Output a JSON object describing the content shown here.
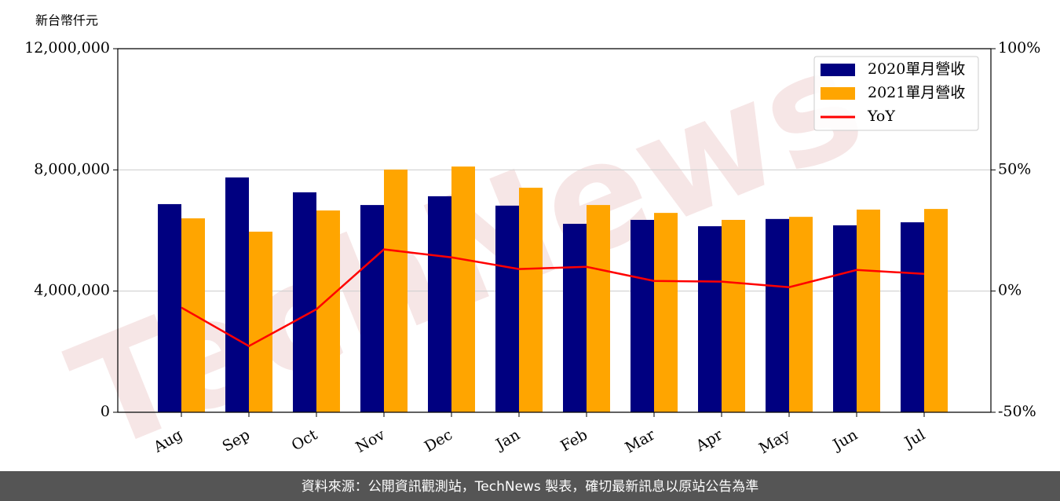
{
  "chart_data": {
    "type": "bar",
    "y_label": "新台幣仟元",
    "watermark": "TechNews",
    "footer": "資料來源：公開資訊觀測站，TechNews 製表，確切最新訊息以原站公告為準",
    "categories": [
      "Aug",
      "Sep",
      "Oct",
      "Nov",
      "Dec",
      "Jan",
      "Feb",
      "Mar",
      "Apr",
      "May",
      "Jun",
      "Jul"
    ],
    "series": [
      {
        "name": "2020單月營收",
        "color": "#000080",
        "values": [
          6870000,
          7750000,
          7260000,
          6840000,
          7130000,
          6820000,
          6220000,
          6350000,
          6140000,
          6380000,
          6170000,
          6270000
        ]
      },
      {
        "name": "2021單月營收",
        "color": "#ffa500",
        "values": [
          6400000,
          5960000,
          6660000,
          8010000,
          8110000,
          7410000,
          6840000,
          6580000,
          6350000,
          6450000,
          6690000,
          6710000
        ]
      },
      {
        "name": "YoY",
        "color": "#ff0000",
        "type": "line",
        "axis": "y2",
        "values": [
          -6.8,
          -22.7,
          -7.5,
          17.2,
          13.9,
          9.1,
          10.0,
          4.2,
          3.9,
          1.6,
          8.7,
          7.1
        ]
      }
    ],
    "ylim": [
      0,
      12000000
    ],
    "yticks": [
      0,
      {
        "value": 4000000,
        "label": "4,000,000"
      },
      {
        "value": 8000000,
        "label": "8,000,000"
      },
      {
        "value": 12000000,
        "label": "12,000,000"
      }
    ],
    "y2lim": [
      -50,
      100
    ],
    "y2ticks": [
      {
        "value": -50,
        "label": "-50%"
      },
      {
        "value": 0,
        "label": "0%"
      },
      {
        "value": 50,
        "label": "50%"
      },
      {
        "value": 100,
        "label": "100%"
      }
    ],
    "grid": true,
    "legend": "upper right"
  }
}
